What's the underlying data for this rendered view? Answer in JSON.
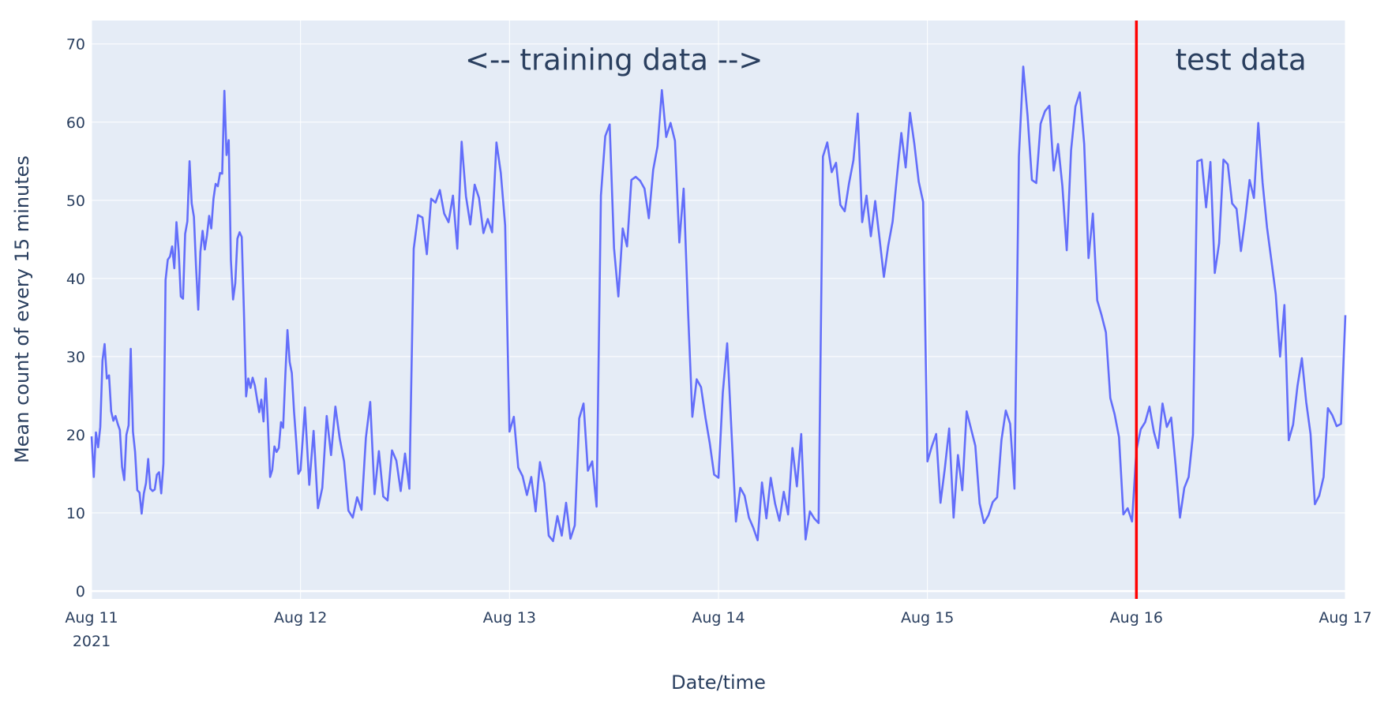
{
  "chart_data": {
    "type": "line",
    "title": "",
    "xlabel": "Date/time",
    "ylabel": "Mean count of every 15 minutes",
    "x_range": [
      "2021-08-11T00:00",
      "2021-08-17T00:00"
    ],
    "ylim": [
      -1,
      73
    ],
    "y_ticks": [
      0,
      10,
      20,
      30,
      40,
      50,
      60,
      70
    ],
    "x_ticks": [
      {
        "at": "2021-08-11T00:00",
        "label": "Aug 11",
        "sublabel": "2021"
      },
      {
        "at": "2021-08-12T00:00",
        "label": "Aug 12"
      },
      {
        "at": "2021-08-13T00:00",
        "label": "Aug 13"
      },
      {
        "at": "2021-08-14T00:00",
        "label": "Aug 14"
      },
      {
        "at": "2021-08-15T00:00",
        "label": "Aug 15"
      },
      {
        "at": "2021-08-16T00:00",
        "label": "Aug 16"
      },
      {
        "at": "2021-08-17T00:00",
        "label": "Aug 17"
      }
    ],
    "grid": true,
    "legend": "none",
    "colors": {
      "plot_bg": "#e5ecf6",
      "line": "#636efa",
      "split_line": "#ff0000",
      "text": "#2a3f5f"
    },
    "split_at": "2021-08-16T00:00",
    "annotations": [
      {
        "text": "<-- training data -->",
        "x": "2021-08-13T12:00",
        "y": 68
      },
      {
        "text": "test data",
        "x": "2021-08-16T12:00",
        "y": 68
      }
    ],
    "series": [
      {
        "x": [
          "2021-08-11T00:00",
          "2021-08-11T00:15",
          "2021-08-11T00:30",
          "2021-08-11T00:45",
          "2021-08-11T01:00",
          "2021-08-11T01:15",
          "2021-08-11T01:30",
          "2021-08-11T01:45",
          "2021-08-11T02:00",
          "2021-08-11T02:15",
          "2021-08-11T02:30",
          "2021-08-11T02:45",
          "2021-08-11T03:00",
          "2021-08-11T03:15",
          "2021-08-11T03:30",
          "2021-08-11T03:45",
          "2021-08-11T04:00",
          "2021-08-11T04:15",
          "2021-08-11T04:30",
          "2021-08-11T04:45",
          "2021-08-11T05:00",
          "2021-08-11T05:15",
          "2021-08-11T05:30",
          "2021-08-11T05:45",
          "2021-08-11T06:00",
          "2021-08-11T06:15",
          "2021-08-11T06:30",
          "2021-08-11T06:45",
          "2021-08-11T07:00",
          "2021-08-11T07:15",
          "2021-08-11T07:30",
          "2021-08-11T07:45",
          "2021-08-11T08:00",
          "2021-08-11T08:15",
          "2021-08-11T08:30",
          "2021-08-11T08:45",
          "2021-08-11T09:00",
          "2021-08-11T09:15",
          "2021-08-11T09:30",
          "2021-08-11T09:45",
          "2021-08-11T10:00",
          "2021-08-11T10:15",
          "2021-08-11T10:30",
          "2021-08-11T10:45",
          "2021-08-11T11:00",
          "2021-08-11T11:15",
          "2021-08-11T11:30",
          "2021-08-11T11:45",
          "2021-08-11T12:00",
          "2021-08-11T12:15",
          "2021-08-11T12:30",
          "2021-08-11T12:45",
          "2021-08-11T13:00",
          "2021-08-11T13:15",
          "2021-08-11T13:30",
          "2021-08-11T13:45",
          "2021-08-11T14:00",
          "2021-08-11T14:15",
          "2021-08-11T14:30",
          "2021-08-11T14:45",
          "2021-08-11T15:00",
          "2021-08-11T15:15",
          "2021-08-11T15:30",
          "2021-08-11T15:45",
          "2021-08-11T16:00",
          "2021-08-11T16:15",
          "2021-08-11T16:30",
          "2021-08-11T16:45",
          "2021-08-11T17:00",
          "2021-08-11T17:15",
          "2021-08-11T17:30",
          "2021-08-11T17:45",
          "2021-08-11T18:00",
          "2021-08-11T18:15",
          "2021-08-11T18:30",
          "2021-08-11T18:45",
          "2021-08-11T19:00",
          "2021-08-11T19:15",
          "2021-08-11T19:30",
          "2021-08-11T19:45",
          "2021-08-11T20:00",
          "2021-08-11T20:15",
          "2021-08-11T20:30",
          "2021-08-11T20:45",
          "2021-08-11T21:00",
          "2021-08-11T21:15",
          "2021-08-11T21:30",
          "2021-08-11T21:45",
          "2021-08-11T22:00",
          "2021-08-11T22:15",
          "2021-08-11T22:30",
          "2021-08-11T22:45",
          "2021-08-11T23:00",
          "2021-08-11T23:15",
          "2021-08-11T23:30",
          "2021-08-11T23:45",
          "2021-08-12T00:00",
          "2021-08-12T00:30",
          "2021-08-12T01:00",
          "2021-08-12T01:30",
          "2021-08-12T02:00",
          "2021-08-12T02:30",
          "2021-08-12T03:00",
          "2021-08-12T03:30",
          "2021-08-12T04:00",
          "2021-08-12T04:30",
          "2021-08-12T05:00",
          "2021-08-12T05:30",
          "2021-08-12T06:00",
          "2021-08-12T06:30",
          "2021-08-12T07:00",
          "2021-08-12T07:30",
          "2021-08-12T08:00",
          "2021-08-12T08:30",
          "2021-08-12T09:00",
          "2021-08-12T09:30",
          "2021-08-12T10:00",
          "2021-08-12T10:30",
          "2021-08-12T11:00",
          "2021-08-12T11:30",
          "2021-08-12T12:00",
          "2021-08-12T12:30",
          "2021-08-12T13:00",
          "2021-08-12T13:30",
          "2021-08-12T14:00",
          "2021-08-12T14:30",
          "2021-08-12T15:00",
          "2021-08-12T15:30",
          "2021-08-12T16:00",
          "2021-08-12T16:30",
          "2021-08-12T17:00",
          "2021-08-12T17:30",
          "2021-08-12T18:00",
          "2021-08-12T18:30",
          "2021-08-12T19:00",
          "2021-08-12T19:30",
          "2021-08-12T20:00",
          "2021-08-12T20:30",
          "2021-08-12T21:00",
          "2021-08-12T21:30",
          "2021-08-12T22:00",
          "2021-08-12T22:30",
          "2021-08-12T23:00",
          "2021-08-12T23:30",
          "2021-08-13T00:00",
          "2021-08-13T00:30",
          "2021-08-13T01:00",
          "2021-08-13T01:30",
          "2021-08-13T02:00",
          "2021-08-13T02:30",
          "2021-08-13T03:00",
          "2021-08-13T03:30",
          "2021-08-13T04:00",
          "2021-08-13T04:30",
          "2021-08-13T05:00",
          "2021-08-13T05:30",
          "2021-08-13T06:00",
          "2021-08-13T06:30",
          "2021-08-13T07:00",
          "2021-08-13T07:30",
          "2021-08-13T08:00",
          "2021-08-13T08:30",
          "2021-08-13T09:00",
          "2021-08-13T09:30",
          "2021-08-13T10:00",
          "2021-08-13T10:30",
          "2021-08-13T11:00",
          "2021-08-13T11:30",
          "2021-08-13T12:00",
          "2021-08-13T12:30",
          "2021-08-13T13:00",
          "2021-08-13T13:30",
          "2021-08-13T14:00",
          "2021-08-13T14:30",
          "2021-08-13T15:00",
          "2021-08-13T15:30",
          "2021-08-13T16:00",
          "2021-08-13T16:30",
          "2021-08-13T17:00",
          "2021-08-13T17:30",
          "2021-08-13T18:00",
          "2021-08-13T18:30",
          "2021-08-13T19:00",
          "2021-08-13T19:30",
          "2021-08-13T20:00",
          "2021-08-13T20:30",
          "2021-08-13T21:00",
          "2021-08-13T21:30",
          "2021-08-13T22:00",
          "2021-08-13T22:30",
          "2021-08-13T23:00",
          "2021-08-13T23:30",
          "2021-08-14T00:00",
          "2021-08-14T00:30",
          "2021-08-14T01:00",
          "2021-08-14T01:30",
          "2021-08-14T02:00",
          "2021-08-14T02:30",
          "2021-08-14T03:00",
          "2021-08-14T03:30",
          "2021-08-14T04:00",
          "2021-08-14T04:30",
          "2021-08-14T05:00",
          "2021-08-14T05:30",
          "2021-08-14T06:00",
          "2021-08-14T06:30",
          "2021-08-14T07:00",
          "2021-08-14T07:30",
          "2021-08-14T08:00",
          "2021-08-14T08:30",
          "2021-08-14T09:00",
          "2021-08-14T09:30",
          "2021-08-14T10:00",
          "2021-08-14T10:30",
          "2021-08-14T11:00",
          "2021-08-14T11:30",
          "2021-08-14T12:00",
          "2021-08-14T12:30",
          "2021-08-14T13:00",
          "2021-08-14T13:30",
          "2021-08-14T14:00",
          "2021-08-14T14:30",
          "2021-08-14T15:00",
          "2021-08-14T15:30",
          "2021-08-14T16:00",
          "2021-08-14T16:30",
          "2021-08-14T17:00",
          "2021-08-14T17:30",
          "2021-08-14T18:00",
          "2021-08-14T18:30",
          "2021-08-14T19:00",
          "2021-08-14T19:30",
          "2021-08-14T20:00",
          "2021-08-14T20:30",
          "2021-08-14T21:00",
          "2021-08-14T21:30",
          "2021-08-14T22:00",
          "2021-08-14T22:30",
          "2021-08-14T23:00",
          "2021-08-14T23:30",
          "2021-08-15T00:00",
          "2021-08-15T00:30",
          "2021-08-15T01:00",
          "2021-08-15T01:30",
          "2021-08-15T02:00",
          "2021-08-15T02:30",
          "2021-08-15T03:00",
          "2021-08-15T03:30",
          "2021-08-15T04:00",
          "2021-08-15T04:30",
          "2021-08-15T05:00",
          "2021-08-15T05:30",
          "2021-08-15T06:00",
          "2021-08-15T06:30",
          "2021-08-15T07:00",
          "2021-08-15T07:30",
          "2021-08-15T08:00",
          "2021-08-15T08:30",
          "2021-08-15T09:00",
          "2021-08-15T09:30",
          "2021-08-15T10:00",
          "2021-08-15T10:30",
          "2021-08-15T11:00",
          "2021-08-15T11:30",
          "2021-08-15T12:00",
          "2021-08-15T12:30",
          "2021-08-15T13:00",
          "2021-08-15T13:30",
          "2021-08-15T14:00",
          "2021-08-15T14:30",
          "2021-08-15T15:00",
          "2021-08-15T15:30",
          "2021-08-15T16:00",
          "2021-08-15T16:30",
          "2021-08-15T17:00",
          "2021-08-15T17:30",
          "2021-08-15T18:00",
          "2021-08-15T18:30",
          "2021-08-15T19:00",
          "2021-08-15T19:30",
          "2021-08-15T20:00",
          "2021-08-15T20:30",
          "2021-08-15T21:00",
          "2021-08-15T21:30",
          "2021-08-15T22:00",
          "2021-08-15T22:30",
          "2021-08-15T23:00",
          "2021-08-15T23:30",
          "2021-08-16T00:00",
          "2021-08-16T00:30",
          "2021-08-16T01:00",
          "2021-08-16T01:30",
          "2021-08-16T02:00",
          "2021-08-16T02:30",
          "2021-08-16T03:00",
          "2021-08-16T03:30",
          "2021-08-16T04:00",
          "2021-08-16T04:30",
          "2021-08-16T05:00",
          "2021-08-16T05:30",
          "2021-08-16T06:00",
          "2021-08-16T06:30",
          "2021-08-16T07:00",
          "2021-08-16T07:30",
          "2021-08-16T08:00",
          "2021-08-16T08:30",
          "2021-08-16T09:00",
          "2021-08-16T09:30",
          "2021-08-16T10:00",
          "2021-08-16T10:30",
          "2021-08-16T11:00",
          "2021-08-16T11:30",
          "2021-08-16T12:00",
          "2021-08-16T12:30",
          "2021-08-16T13:00",
          "2021-08-16T13:30",
          "2021-08-16T14:00",
          "2021-08-16T14:30",
          "2021-08-16T15:00",
          "2021-08-16T15:30",
          "2021-08-16T16:00",
          "2021-08-16T16:30",
          "2021-08-16T17:00",
          "2021-08-16T17:30",
          "2021-08-16T18:00",
          "2021-08-16T18:30",
          "2021-08-16T19:00",
          "2021-08-16T19:30",
          "2021-08-16T20:00",
          "2021-08-16T20:30",
          "2021-08-16T21:00",
          "2021-08-16T21:30",
          "2021-08-16T22:00",
          "2021-08-16T22:30",
          "2021-08-16T23:00",
          "2021-08-16T23:30",
          "2021-08-17T00:00"
        ],
        "y": [
          19.8,
          14.6,
          20.3,
          18.4,
          21.0,
          29.5,
          31.6,
          27.2,
          27.6,
          23.0,
          21.8,
          22.4,
          21.4,
          20.6,
          15.9,
          14.2,
          20.0,
          21.2,
          31.0,
          20.4,
          17.8,
          12.9,
          12.6,
          9.9,
          12.5,
          13.8,
          16.9,
          13.1,
          12.8,
          13.0,
          14.9,
          15.2,
          12.5,
          16.3,
          39.8,
          42.4,
          42.8,
          44.1,
          41.3,
          47.2,
          43.5,
          37.7,
          37.4,
          45.7,
          47.3,
          55.0,
          49.6,
          47.9,
          41.5,
          36.0,
          43.4,
          46.1,
          43.7,
          45.5,
          48.0,
          46.4,
          50.2,
          52.1,
          51.8,
          53.5,
          53.4,
          64.0,
          55.8,
          57.7,
          42.4,
          37.3,
          39.4,
          45.1,
          45.9,
          45.3,
          35.6,
          24.9,
          27.2,
          26.0,
          27.3,
          26.3,
          24.6,
          22.9,
          24.5,
          21.7,
          27.2,
          21.5,
          14.6,
          15.5,
          18.5,
          17.8,
          18.3,
          21.6,
          20.9,
          27.6,
          33.4,
          29.3,
          27.9,
          23.0,
          19.1,
          15.0,
          15.5,
          23.5,
          13.6,
          20.5,
          10.6,
          13.2,
          22.4,
          17.4,
          23.6,
          19.5,
          16.6,
          10.3,
          9.4,
          12.0,
          10.4,
          19.6,
          24.2,
          12.4,
          17.9,
          12.1,
          11.6,
          18.0,
          16.7,
          12.8,
          17.6,
          13.1,
          43.8,
          48.1,
          47.8,
          43.1,
          50.2,
          49.7,
          51.3,
          48.3,
          47.2,
          50.6,
          43.8,
          57.5,
          50.5,
          46.9,
          52.0,
          50.3,
          45.8,
          47.6,
          45.9,
          57.4,
          53.5,
          46.8,
          20.4,
          22.3,
          15.8,
          14.7,
          12.3,
          14.6,
          10.2,
          16.5,
          13.8,
          7.1,
          6.4,
          9.6,
          7.1,
          11.3,
          6.7,
          8.4,
          22.1,
          24.0,
          15.4,
          16.6,
          10.8,
          50.6,
          58.2,
          59.7,
          43.9,
          37.7,
          46.4,
          44.1,
          52.6,
          53.0,
          52.5,
          51.5,
          47.7,
          53.9,
          56.9,
          64.1,
          58.1,
          59.9,
          57.6,
          44.6,
          51.5,
          36.0,
          22.3,
          27.1,
          26.1,
          22.2,
          18.9,
          14.9,
          14.5,
          25.4,
          31.7,
          20.4,
          8.9,
          13.2,
          12.2,
          9.4,
          8.1,
          6.5,
          13.9,
          9.3,
          14.5,
          11.2,
          9.0,
          12.7,
          9.8,
          18.3,
          13.4,
          20.1,
          6.6,
          10.2,
          9.3,
          8.7,
          55.6,
          57.4,
          53.6,
          54.8,
          49.4,
          48.6,
          52.2,
          55.1,
          61.1,
          47.2,
          50.6,
          45.4,
          49.9,
          45.1,
          40.2,
          44.2,
          47.3,
          53.1,
          58.6,
          54.2,
          61.2,
          57.2,
          52.4,
          49.8,
          16.6,
          18.5,
          20.1,
          11.3,
          15.7,
          20.8,
          9.4,
          17.4,
          12.9,
          23.0,
          20.8,
          18.6,
          11.2,
          8.7,
          9.7,
          11.4,
          12.0,
          19.3,
          23.1,
          21.4,
          13.1,
          55.6,
          67.1,
          60.8,
          52.6,
          52.2,
          59.8,
          61.4,
          62.1,
          53.8,
          57.2,
          51.8,
          43.6,
          56.4,
          62.0,
          63.8,
          57.2,
          42.6,
          48.3,
          37.2,
          35.3,
          33.1,
          24.7,
          22.6,
          19.7,
          9.8,
          10.6,
          8.9,
          18.0,
          20.7,
          21.6,
          23.6,
          20.4,
          18.3,
          24.0,
          21.0,
          22.2,
          16.1,
          9.4,
          13.2,
          14.6,
          20.0,
          55.0,
          55.2,
          49.1,
          54.9,
          40.7,
          44.5,
          55.2,
          54.6,
          49.6,
          48.9,
          43.5,
          47.7,
          52.6,
          50.3,
          59.9,
          52.2,
          46.5,
          42.3,
          38.0,
          30.0,
          36.6,
          19.3,
          21.3,
          26.2,
          29.8,
          24.2,
          20.1,
          11.1,
          12.2,
          14.6,
          23.4,
          22.5,
          21.1,
          21.4,
          35.3
        ]
      }
    ]
  }
}
